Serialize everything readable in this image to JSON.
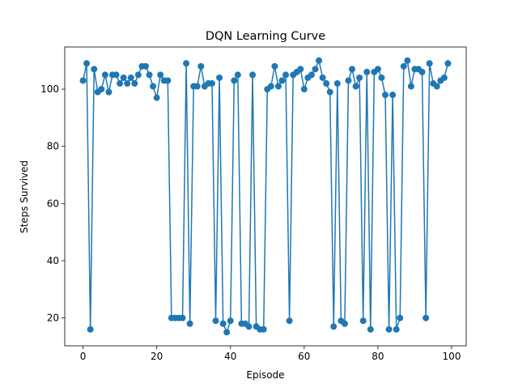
{
  "chart_data": {
    "type": "line",
    "title": "DQN Learning Curve",
    "xlabel": "Episode",
    "ylabel": "Steps Survived",
    "xlim": [
      -4.95,
      103.95
    ],
    "ylim": [
      10.25,
      114.75
    ],
    "xticks": [
      0,
      20,
      40,
      60,
      80,
      100
    ],
    "yticks": [
      20,
      40,
      60,
      80,
      100
    ],
    "grid": false,
    "marker": "circle",
    "series": [
      {
        "color": "#1f77b4",
        "x": [
          0,
          1,
          2,
          3,
          4,
          5,
          6,
          7,
          8,
          9,
          10,
          11,
          12,
          13,
          14,
          15,
          16,
          17,
          18,
          19,
          20,
          21,
          22,
          23,
          24,
          25,
          26,
          27,
          28,
          29,
          30,
          31,
          32,
          33,
          34,
          35,
          36,
          37,
          38,
          39,
          40,
          41,
          42,
          43,
          44,
          45,
          46,
          47,
          48,
          49,
          50,
          51,
          52,
          53,
          54,
          55,
          56,
          57,
          58,
          59,
          60,
          61,
          62,
          63,
          64,
          65,
          66,
          67,
          68,
          69,
          70,
          71,
          72,
          73,
          74,
          75,
          76,
          77,
          78,
          79,
          80,
          81,
          82,
          83,
          84,
          85,
          86,
          87,
          88,
          89,
          90,
          91,
          92,
          93,
          94,
          95,
          96,
          97,
          98,
          99
        ],
        "values": [
          103,
          109,
          16,
          107,
          99,
          100,
          105,
          99,
          105,
          105,
          102,
          104,
          102,
          104,
          102,
          105,
          108,
          108,
          105,
          101,
          97,
          105,
          103,
          103,
          20,
          20,
          20,
          20,
          109,
          18,
          101,
          101,
          108,
          101,
          102,
          102,
          19,
          104,
          18,
          15,
          19,
          103,
          105,
          18,
          18,
          17,
          105,
          17,
          16,
          16,
          100,
          101,
          108,
          101,
          103,
          105,
          19,
          105,
          106,
          107,
          100,
          104,
          105,
          107,
          110,
          104,
          102,
          99,
          17,
          102,
          19,
          18,
          103,
          107,
          101,
          104,
          19,
          106,
          16,
          106,
          107,
          104,
          98,
          16,
          98,
          16,
          20,
          108,
          110,
          101,
          107,
          107,
          106,
          20,
          109,
          102,
          101,
          103,
          104,
          109
        ]
      }
    ]
  }
}
